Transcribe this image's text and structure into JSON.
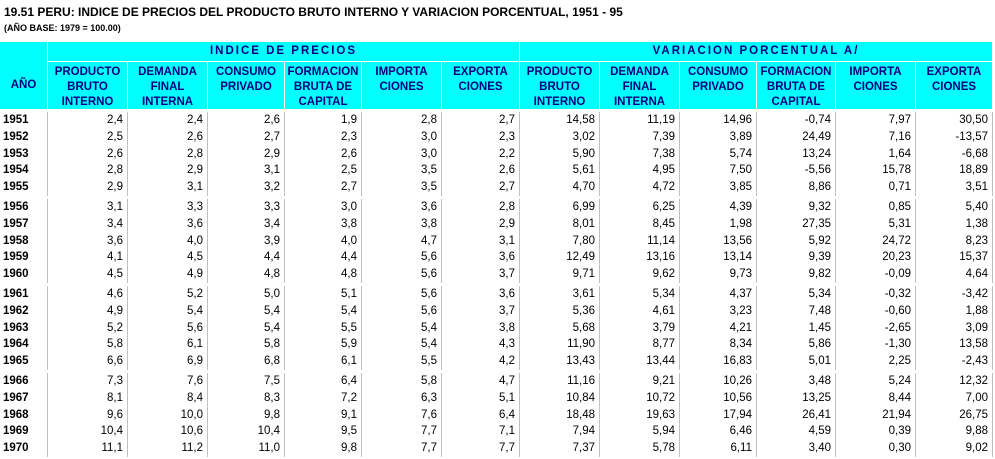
{
  "header": {
    "title": "19.51  PERU: INDICE DE PRECIOS DEL PRODUCTO BRUTO INTERNO Y VARIACION PORCENTUAL, 1951 - 95",
    "subtitle": "(AÑO BASE: 1979 = 100.00)"
  },
  "table": {
    "year_header": "AÑO",
    "groups": [
      "INDICE DE PRECIOS",
      "VARIACION PORCENTUAL A/"
    ],
    "columns": [
      "PRODUCTO\nBRUTO\nINTERNO",
      "DEMANDA\nFINAL\nINTERNA",
      "CONSUMO\nPRIVADO",
      "FORMACION\nBRUTA DE\nCAPITAL",
      "IMPORTA\nCIONES",
      "EXPORTA\nCIONES",
      "PRODUCTO\nBRUTO\nINTERNO",
      "DEMANDA\nFINAL\nINTERNA",
      "CONSUMO\nPRIVADO",
      "FORMACION\nBRUTA DE\nCAPITAL",
      "IMPORTA\nCIONES",
      "EXPORTA\nCIONES"
    ],
    "rows": [
      [
        "1951",
        "2,4",
        "2,4",
        "2,6",
        "1,9",
        "2,8",
        "2,7",
        "14,58",
        "11,19",
        "14,96",
        "-0,74",
        "7,97",
        "30,50"
      ],
      [
        "1952",
        "2,5",
        "2,6",
        "2,7",
        "2,3",
        "3,0",
        "2,3",
        "3,02",
        "7,39",
        "3,89",
        "24,49",
        "7,16",
        "-13,57"
      ],
      [
        "1953",
        "2,6",
        "2,8",
        "2,9",
        "2,6",
        "3,0",
        "2,2",
        "5,90",
        "7,38",
        "5,74",
        "13,24",
        "1,64",
        "-6,68"
      ],
      [
        "1954",
        "2,8",
        "2,9",
        "3,1",
        "2,5",
        "3,5",
        "2,6",
        "5,61",
        "4,95",
        "7,50",
        "-5,56",
        "15,78",
        "18,89"
      ],
      [
        "1955",
        "2,9",
        "3,1",
        "3,2",
        "2,7",
        "3,5",
        "2,7",
        "4,70",
        "4,72",
        "3,85",
        "8,86",
        "0,71",
        "3,51"
      ],
      [
        "1956",
        "3,1",
        "3,3",
        "3,3",
        "3,0",
        "3,6",
        "2,8",
        "6,99",
        "6,25",
        "4,39",
        "9,32",
        "0,85",
        "5,40"
      ],
      [
        "1957",
        "3,4",
        "3,6",
        "3,4",
        "3,8",
        "3,8",
        "2,9",
        "8,01",
        "8,45",
        "1,98",
        "27,35",
        "5,31",
        "1,38"
      ],
      [
        "1958",
        "3,6",
        "4,0",
        "3,9",
        "4,0",
        "4,7",
        "3,1",
        "7,80",
        "11,14",
        "13,56",
        "5,92",
        "24,72",
        "8,23"
      ],
      [
        "1959",
        "4,1",
        "4,5",
        "4,4",
        "4,4",
        "5,6",
        "3,6",
        "12,49",
        "13,16",
        "13,14",
        "9,39",
        "20,23",
        "15,37"
      ],
      [
        "1960",
        "4,5",
        "4,9",
        "4,8",
        "4,8",
        "5,6",
        "3,7",
        "9,71",
        "9,62",
        "9,73",
        "9,82",
        "-0,09",
        "4,64"
      ],
      [
        "1961",
        "4,6",
        "5,2",
        "5,0",
        "5,1",
        "5,6",
        "3,6",
        "3,61",
        "5,34",
        "4,37",
        "5,34",
        "-0,32",
        "-3,42"
      ],
      [
        "1962",
        "4,9",
        "5,4",
        "5,4",
        "5,4",
        "5,6",
        "3,7",
        "5,36",
        "4,61",
        "3,23",
        "7,48",
        "-0,60",
        "1,88"
      ],
      [
        "1963",
        "5,2",
        "5,6",
        "5,4",
        "5,5",
        "5,4",
        "3,8",
        "5,68",
        "3,79",
        "4,21",
        "1,45",
        "-2,65",
        "3,09"
      ],
      [
        "1964",
        "5,8",
        "6,1",
        "5,8",
        "5,9",
        "5,4",
        "4,3",
        "11,90",
        "8,77",
        "8,34",
        "5,86",
        "-1,30",
        "13,58"
      ],
      [
        "1965",
        "6,6",
        "6,9",
        "6,8",
        "6,1",
        "5,5",
        "4,2",
        "13,43",
        "13,44",
        "16,83",
        "5,01",
        "2,25",
        "-2,43"
      ],
      [
        "1966",
        "7,3",
        "7,6",
        "7,5",
        "6,4",
        "5,8",
        "4,7",
        "11,16",
        "9,21",
        "10,26",
        "3,48",
        "5,24",
        "12,32"
      ],
      [
        "1967",
        "8,1",
        "8,4",
        "8,3",
        "7,2",
        "6,3",
        "5,1",
        "10,84",
        "10,72",
        "10,56",
        "13,25",
        "8,44",
        "7,00"
      ],
      [
        "1968",
        "9,6",
        "10,0",
        "9,8",
        "9,1",
        "7,6",
        "6,4",
        "18,48",
        "19,63",
        "17,94",
        "26,41",
        "21,94",
        "26,75"
      ],
      [
        "1969",
        "10,4",
        "10,6",
        "10,4",
        "9,5",
        "7,7",
        "7,1",
        "7,94",
        "5,94",
        "6,46",
        "4,59",
        "0,39",
        "9,88"
      ],
      [
        "1970",
        "11,1",
        "11,2",
        "11,0",
        "9,8",
        "7,7",
        "7,7",
        "7,37",
        "5,78",
        "6,11",
        "3,40",
        "0,30",
        "9,02"
      ]
    ]
  }
}
